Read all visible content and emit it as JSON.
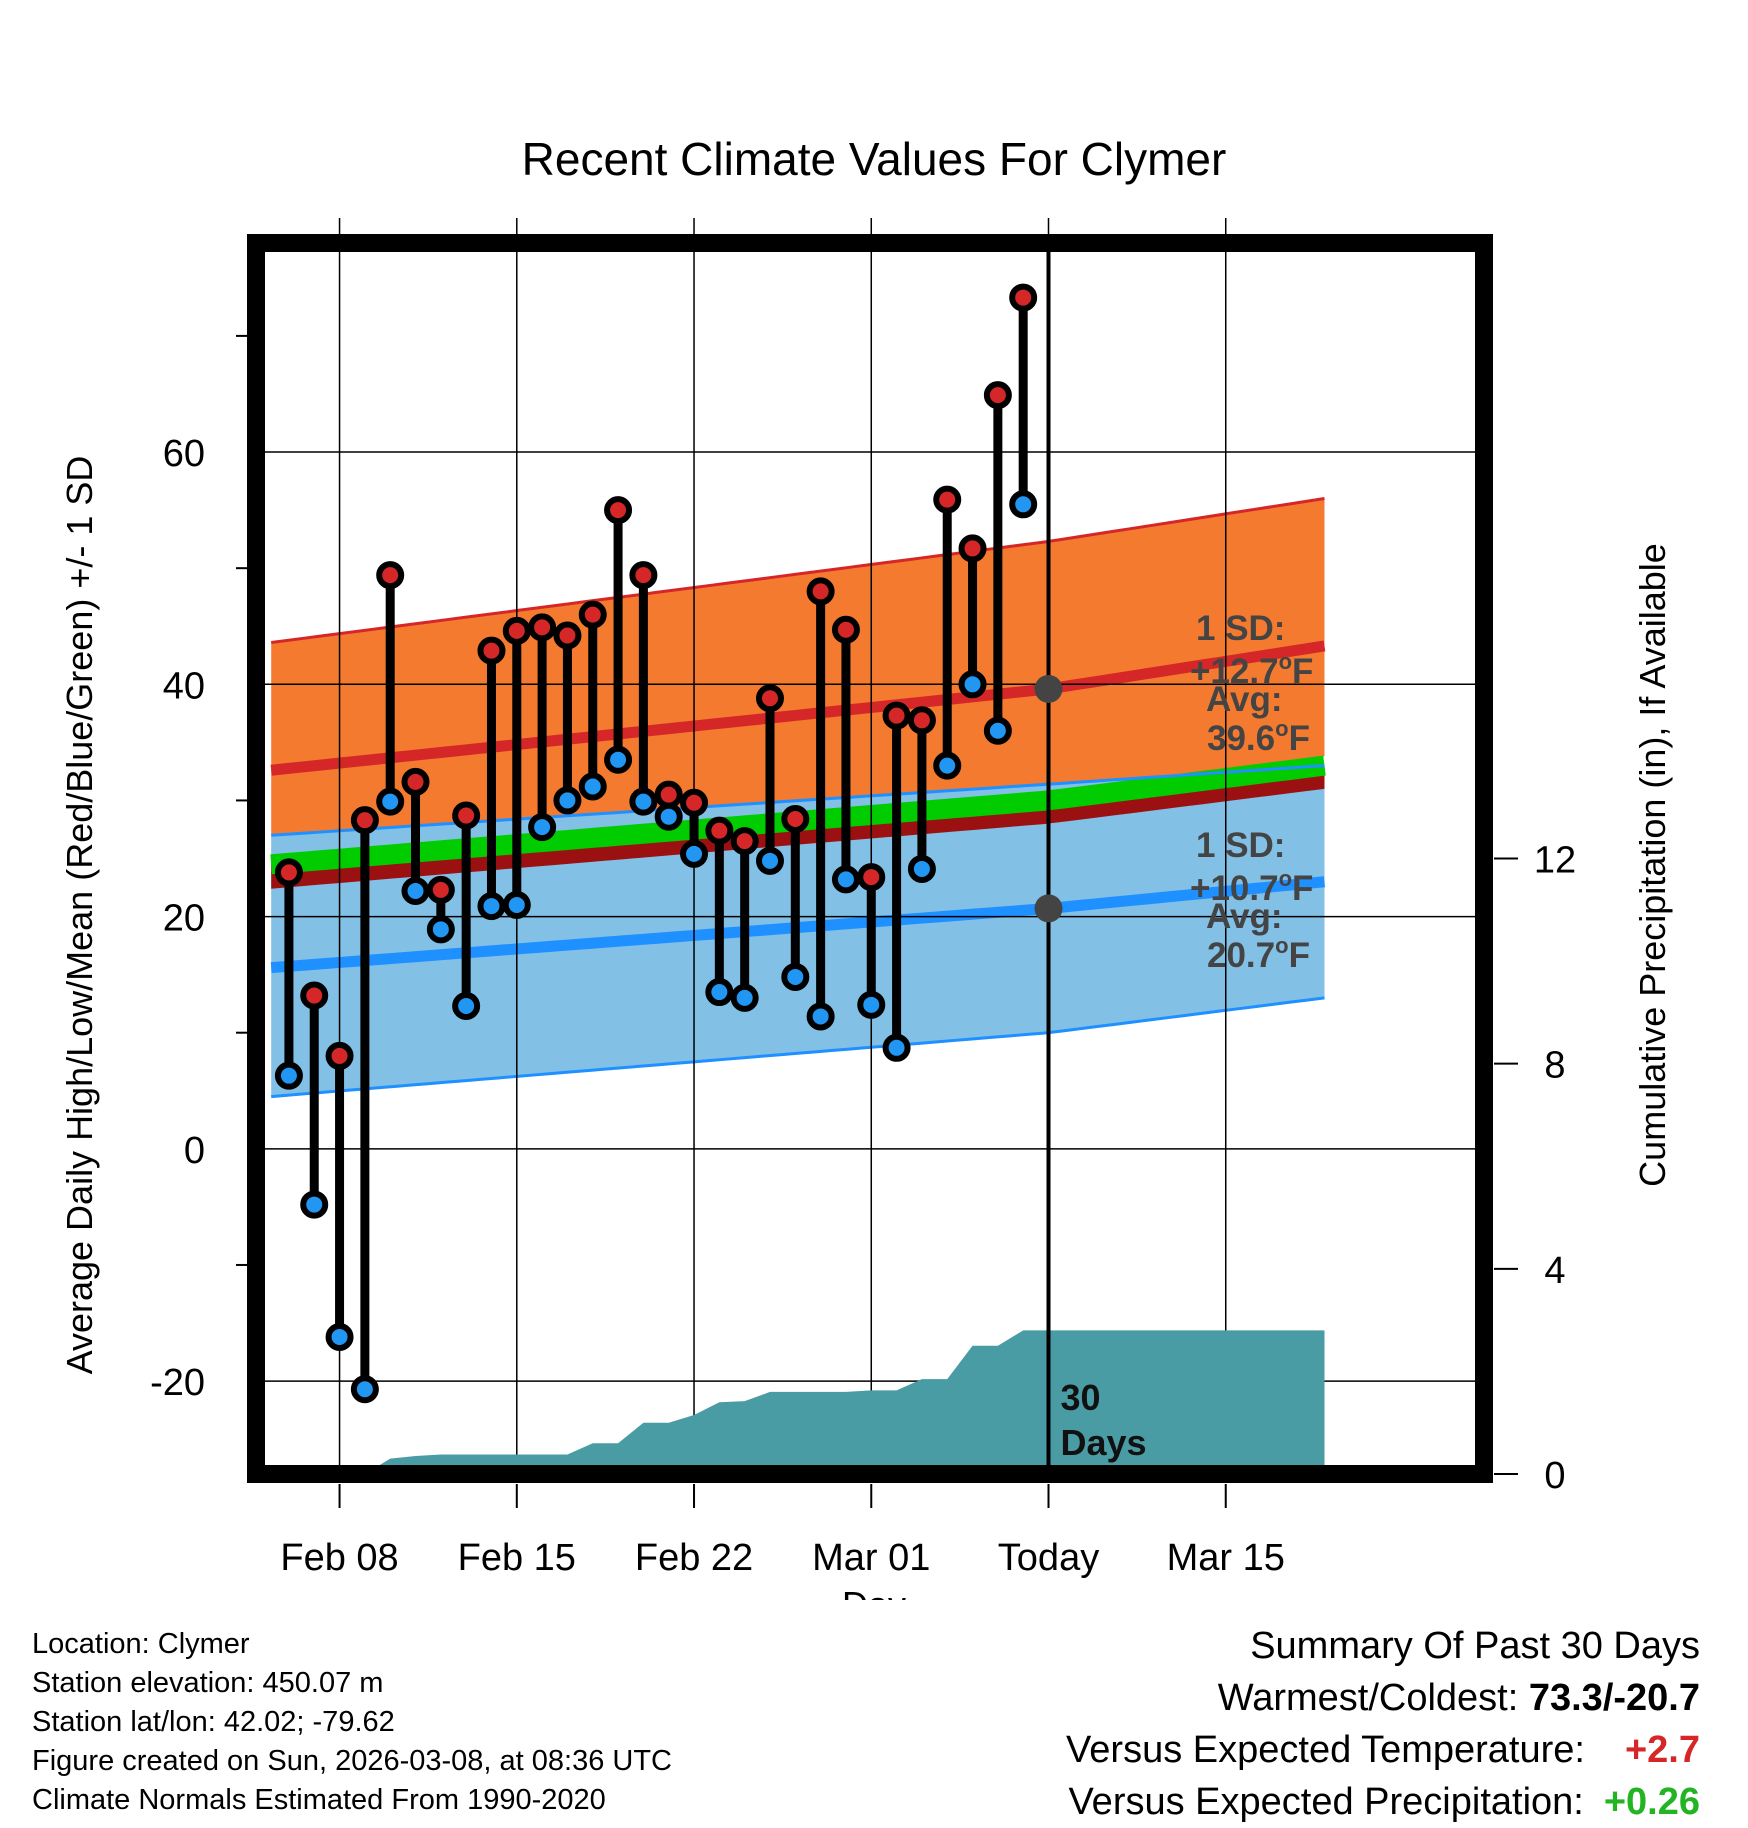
{
  "chart_data": {
    "type": "line",
    "title": "Recent Climate Values For Clymer",
    "xlabel": "Day",
    "ylabel": "Average Daily High/Low/Mean (Red/Blue/Green) +/- 1 SD",
    "y2label": "Cumulative Precipitation (in), If Available",
    "ylim": [
      -28,
      78
    ],
    "y2lim": [
      0,
      24
    ],
    "y_ticks": [
      -20,
      0,
      20,
      40,
      60
    ],
    "y2_ticks": [
      0,
      4,
      8,
      12
    ],
    "x_range": [
      -3.3,
      45.2
    ],
    "x_ticks": [
      {
        "day": 0,
        "label": "Feb 08"
      },
      {
        "day": 7,
        "label": "Feb 15"
      },
      {
        "day": 14,
        "label": "Feb 22"
      },
      {
        "day": 21,
        "label": "Mar 01"
      },
      {
        "day": 28,
        "label": "Today"
      },
      {
        "day": 35,
        "label": "Mar 15"
      }
    ],
    "today_day": 28,
    "days_label": [
      "30",
      "Days"
    ],
    "normals_x": [
      -2.7,
      28,
      38.9
    ],
    "normal_high": [
      32.6,
      39.6,
      43.3
    ],
    "normal_high_upper": [
      43.6,
      52.3,
      56.0
    ],
    "normal_high_lower": [
      27.0,
      30.5,
      33.8
    ],
    "normal_low": [
      15.6,
      20.7,
      23.0
    ],
    "normal_low_upper": [
      27.0,
      31.4,
      33.0
    ],
    "normal_low_lower": [
      4.5,
      10.0,
      13.0
    ],
    "normal_mean": [
      24.5,
      30.0,
      33.0
    ],
    "normal_mean_lower": [
      22.4,
      28.0,
      31.0
    ],
    "high_sd_label": "1 SD:",
    "high_sd_value": "+12.7",
    "high_avg_label": "Avg:",
    "high_avg_value": "39.6",
    "low_sd_label": "1 SD:",
    "low_sd_value": "+10.7",
    "low_avg_label": "Avg:",
    "low_avg_value": "20.7",
    "degree_unit": "o",
    "temp_unit": "F",
    "series": [
      {
        "name": "Daily High",
        "x": [
          -2,
          -1,
          0,
          1,
          2,
          3,
          4,
          5,
          6,
          7,
          8,
          9,
          10,
          11,
          12,
          13,
          14,
          15,
          16,
          17,
          18,
          19,
          20,
          21,
          22,
          23,
          24,
          25,
          26,
          27
        ],
        "values": [
          23.8,
          13.2,
          8.0,
          28.3,
          49.4,
          31.6,
          22.3,
          28.7,
          42.9,
          44.6,
          44.9,
          44.2,
          46.0,
          55.0,
          49.4,
          30.5,
          29.8,
          27.4,
          26.5,
          38.8,
          28.4,
          48.0,
          44.7,
          23.4,
          37.3,
          36.9,
          55.9,
          51.7,
          64.9,
          73.3
        ]
      },
      {
        "name": "Daily Low",
        "x": [
          -2,
          -1,
          0,
          1,
          2,
          3,
          4,
          5,
          6,
          7,
          8,
          9,
          10,
          11,
          12,
          13,
          14,
          15,
          16,
          17,
          18,
          19,
          20,
          21,
          22,
          23,
          24,
          25,
          26,
          27
        ],
        "values": [
          6.3,
          -4.8,
          -16.2,
          -20.7,
          29.9,
          22.2,
          18.9,
          12.3,
          20.9,
          21.0,
          27.7,
          30.0,
          31.2,
          33.5,
          29.9,
          28.6,
          25.4,
          13.5,
          13.0,
          24.8,
          14.8,
          11.4,
          23.2,
          12.4,
          8.7,
          24.1,
          33.0,
          40.0,
          36.0,
          55.5
        ]
      },
      {
        "name": "Cumulative Precipitation",
        "x": [
          1,
          2,
          3,
          4,
          5,
          6,
          7,
          8,
          9,
          10,
          11,
          12,
          13,
          14,
          15,
          16,
          17,
          18,
          19,
          20,
          21,
          22,
          23,
          24,
          25,
          26,
          27,
          28,
          38.9
        ],
        "values": [
          0,
          0.3,
          0.35,
          0.38,
          0.38,
          0.38,
          0.38,
          0.38,
          0.38,
          0.6,
          0.6,
          1.0,
          1.0,
          1.15,
          1.4,
          1.42,
          1.6,
          1.6,
          1.6,
          1.6,
          1.63,
          1.63,
          1.85,
          1.85,
          2.5,
          2.5,
          2.8,
          2.8,
          2.8
        ]
      }
    ],
    "colors": {
      "high": "#d62728",
      "high_band": "#f47a30",
      "low": "#1e90ff",
      "low_band": "#82c0e6",
      "mean": "#00cc00",
      "mean_dark": "#9b1111",
      "precip": "#4a9ca4",
      "marker_low": "#2196f3"
    }
  },
  "info": {
    "location": "Location: Clymer",
    "elevation": "Station elevation: 450.07 m",
    "latlon": "Station lat/lon: 42.02; -79.62",
    "created": "Figure created on Sun, 2026-03-08, at 08:36 UTC",
    "normals": "Climate Normals Estimated From 1990-2020"
  },
  "summary": {
    "title": "Summary Of Past 30 Days",
    "warmest_label": "Warmest/Coldest:",
    "warmest_value": "73.3/-20.7",
    "temp_label": "Versus Expected Temperature:",
    "temp_value": "+2.7",
    "precip_label": "Versus Expected Precipitation:",
    "precip_value": "+0.26"
  }
}
